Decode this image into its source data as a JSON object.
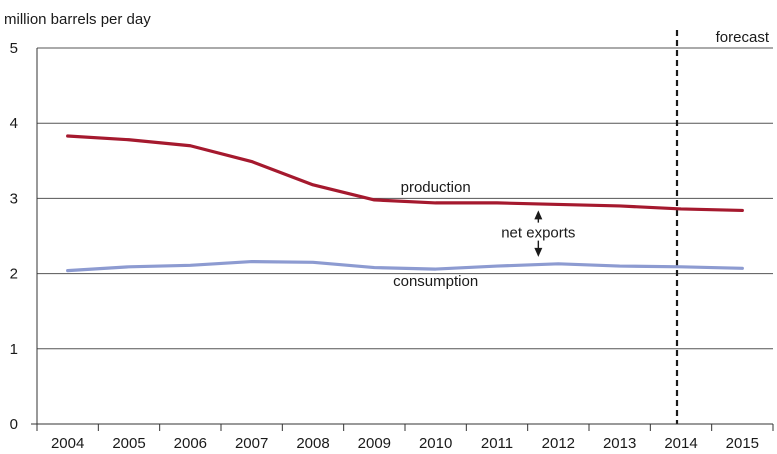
{
  "chart_data": {
    "type": "line",
    "title": "",
    "ylabel": "million barrels per day",
    "xlabel": "",
    "categories": [
      "2004",
      "2005",
      "2006",
      "2007",
      "2008",
      "2009",
      "2010",
      "2011",
      "2012",
      "2013",
      "2014",
      "2015"
    ],
    "ylim": [
      0,
      5
    ],
    "yticks": [
      "0",
      "1",
      "2",
      "3",
      "4",
      "5"
    ],
    "grid": true,
    "series": [
      {
        "name": "production",
        "color": "#a5192e",
        "values": [
          3.83,
          3.78,
          3.7,
          3.49,
          3.18,
          2.98,
          2.94,
          2.94,
          2.92,
          2.9,
          2.86,
          2.84
        ]
      },
      {
        "name": "consumption",
        "color": "#8d9bd1",
        "values": [
          2.04,
          2.09,
          2.11,
          2.16,
          2.15,
          2.08,
          2.06,
          2.1,
          2.13,
          2.1,
          2.09,
          2.07
        ]
      }
    ],
    "annotations": {
      "forecast_label": "forecast",
      "forecast_start": 2014,
      "net_exports_label": "net exports",
      "net_exports_at": 2012
    }
  }
}
